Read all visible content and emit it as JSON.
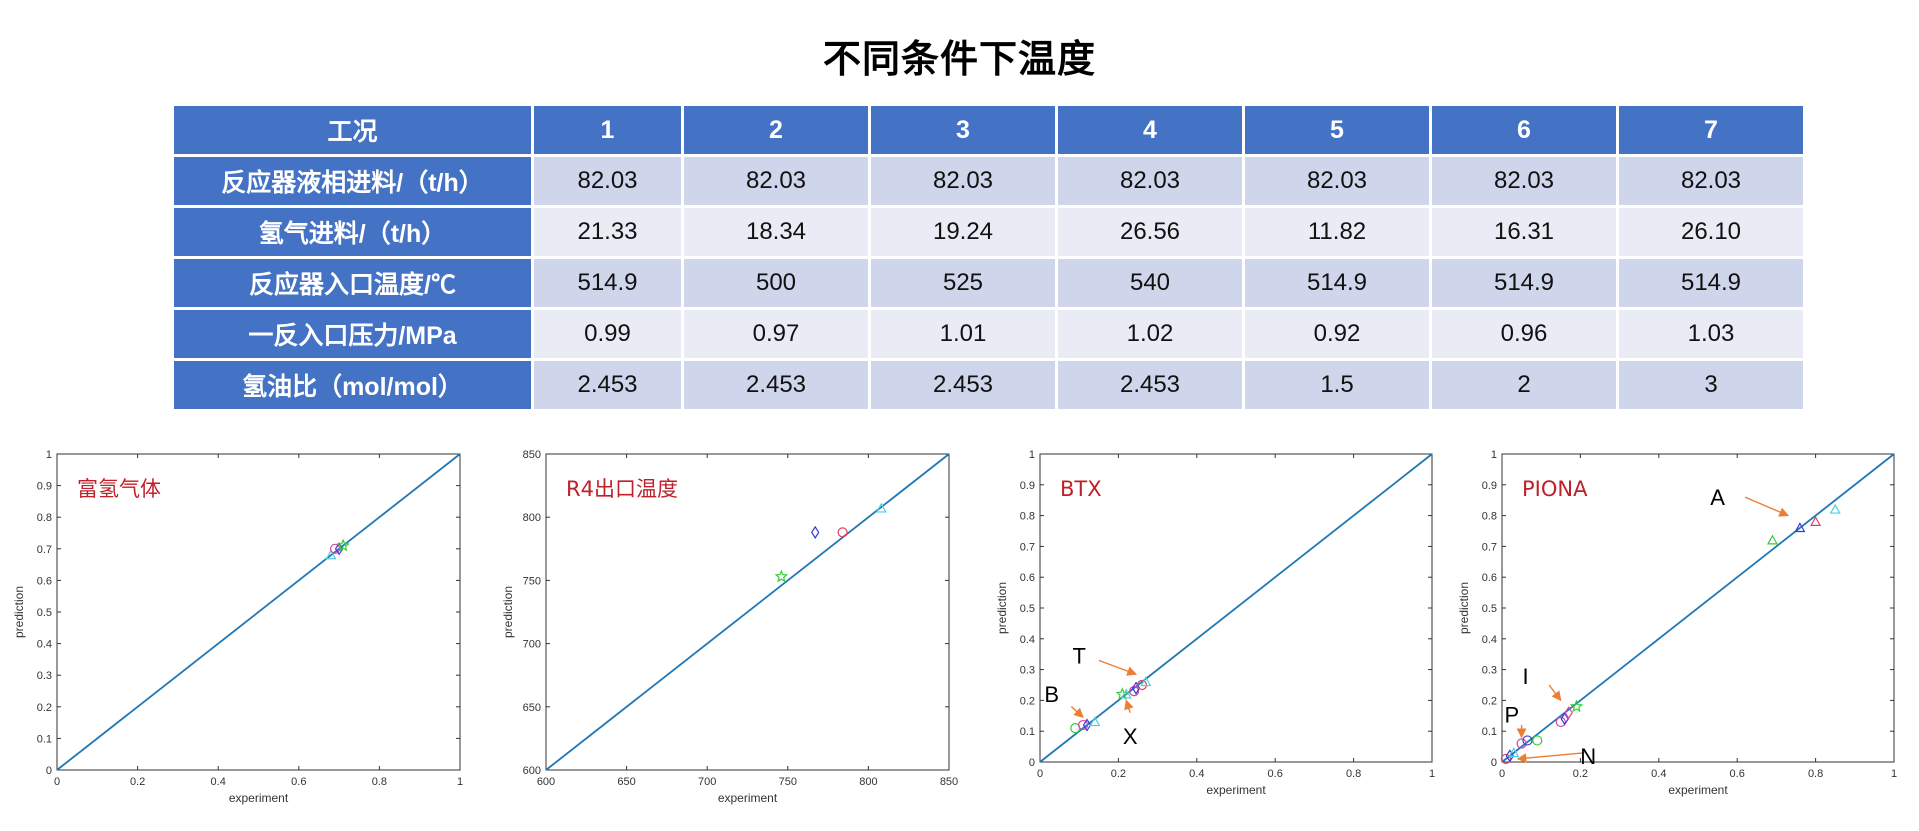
{
  "title": "不同条件下温度",
  "table": {
    "header": [
      "工况",
      "1",
      "2",
      "3",
      "4",
      "5",
      "6",
      "7"
    ],
    "rows": [
      {
        "label": "反应器液相进料/（t/h）",
        "values": [
          "82.03",
          "82.03",
          "82.03",
          "82.03",
          "82.03",
          "82.03",
          "82.03"
        ]
      },
      {
        "label": "氢气进料/（t/h）",
        "values": [
          "21.33",
          "18.34",
          "19.24",
          "26.56",
          "11.82",
          "16.31",
          "26.10"
        ]
      },
      {
        "label": "反应器入口温度/℃",
        "values": [
          "514.9",
          "500",
          "525",
          "540",
          "514.9",
          "514.9",
          "514.9"
        ]
      },
      {
        "label": "一反入口压力/MPa",
        "values": [
          "0.99",
          "0.97",
          "1.01",
          "1.02",
          "0.92",
          "0.96",
          "1.03"
        ]
      },
      {
        "label": "氢油比（mol/mol）",
        "values": [
          "2.453",
          "2.453",
          "2.453",
          "2.453",
          "1.5",
          "2",
          "3"
        ]
      }
    ]
  },
  "chart_data": [
    {
      "type": "scatter",
      "title": "富氢气体",
      "xlabel": "experiment",
      "ylabel": "prediction",
      "xlim": [
        0,
        1
      ],
      "ylim": [
        0,
        1
      ],
      "xticks": [
        "0",
        "0.2",
        "0.4",
        "0.6",
        "0.8",
        "1"
      ],
      "yticks": [
        "0",
        "0.1",
        "0.2",
        "0.3",
        "0.4",
        "0.5",
        "0.6",
        "0.7",
        "0.8",
        "0.9",
        "1"
      ],
      "diagonal": true,
      "points": [
        {
          "x": 0.68,
          "y": 0.68,
          "color": "#4dd0e1",
          "marker": "triangle"
        },
        {
          "x": 0.69,
          "y": 0.7,
          "color": "#e040a0",
          "marker": "circle"
        },
        {
          "x": 0.7,
          "y": 0.7,
          "color": "#3a3ae0",
          "marker": "diamond"
        },
        {
          "x": 0.71,
          "y": 0.71,
          "color": "#30d030",
          "marker": "star"
        }
      ],
      "annotations": []
    },
    {
      "type": "scatter",
      "title": "R4出口温度",
      "xlabel": "experiment",
      "ylabel": "prediction",
      "xlim": [
        600,
        850
      ],
      "ylim": [
        600,
        850
      ],
      "xticks": [
        "600",
        "650",
        "700",
        "750",
        "800",
        "850"
      ],
      "yticks": [
        "600",
        "650",
        "700",
        "750",
        "800",
        "850"
      ],
      "diagonal": true,
      "points": [
        {
          "x": 746,
          "y": 753,
          "color": "#30d030",
          "marker": "star"
        },
        {
          "x": 767,
          "y": 788,
          "color": "#3a3ae0",
          "marker": "diamond"
        },
        {
          "x": 784,
          "y": 788,
          "color": "#e04060",
          "marker": "circle"
        },
        {
          "x": 808,
          "y": 807,
          "color": "#4dd0e1",
          "marker": "triangle"
        }
      ],
      "annotations": []
    },
    {
      "type": "scatter",
      "title": "BTX",
      "xlabel": "experiment",
      "ylabel": "prediction",
      "xlim": [
        0,
        1
      ],
      "ylim": [
        0,
        1
      ],
      "xticks": [
        "0",
        "0.2",
        "0.4",
        "0.6",
        "0.8",
        "1"
      ],
      "yticks": [
        "0",
        "0.1",
        "0.2",
        "0.3",
        "0.4",
        "0.5",
        "0.6",
        "0.7",
        "0.8",
        "0.9",
        "1"
      ],
      "diagonal": true,
      "points": [
        {
          "x": 0.09,
          "y": 0.11,
          "color": "#30d030",
          "marker": "circle"
        },
        {
          "x": 0.11,
          "y": 0.12,
          "color": "#e040a0",
          "marker": "circle"
        },
        {
          "x": 0.12,
          "y": 0.12,
          "color": "#3a3ae0",
          "marker": "diamond"
        },
        {
          "x": 0.14,
          "y": 0.13,
          "color": "#4dd0e1",
          "marker": "triangle"
        },
        {
          "x": 0.21,
          "y": 0.22,
          "color": "#30d030",
          "marker": "star"
        },
        {
          "x": 0.22,
          "y": 0.22,
          "color": "#4dd0e1",
          "marker": "triangle"
        },
        {
          "x": 0.24,
          "y": 0.23,
          "color": "#e040a0",
          "marker": "circle"
        },
        {
          "x": 0.245,
          "y": 0.24,
          "color": "#3a3ae0",
          "marker": "diamond"
        },
        {
          "x": 0.26,
          "y": 0.25,
          "color": "#e04060",
          "marker": "circle"
        },
        {
          "x": 0.27,
          "y": 0.26,
          "color": "#4dd0e1",
          "marker": "triangle"
        }
      ],
      "annotations": [
        {
          "text": "B",
          "tx": 0.03,
          "ty": 0.22,
          "ax": 0.08,
          "ay": 0.18,
          "bx": 0.11,
          "by": 0.145
        },
        {
          "text": "T",
          "tx": 0.1,
          "ty": 0.345,
          "ax": 0.15,
          "ay": 0.33,
          "bx": 0.245,
          "by": 0.285
        },
        {
          "text": "X",
          "tx": 0.23,
          "ty": 0.085,
          "ax": 0.23,
          "ay": 0.16,
          "bx": 0.22,
          "by": 0.2
        }
      ]
    },
    {
      "type": "scatter",
      "title": "PIONA",
      "xlabel": "experiment",
      "ylabel": "prediction",
      "xlim": [
        0,
        1
      ],
      "ylim": [
        0,
        1
      ],
      "xticks": [
        "0",
        "0.2",
        "0.4",
        "0.6",
        "0.8",
        "1"
      ],
      "yticks": [
        "0",
        "0.1",
        "0.2",
        "0.3",
        "0.4",
        "0.5",
        "0.6",
        "0.7",
        "0.8",
        "0.9",
        "1"
      ],
      "diagonal": true,
      "points": [
        {
          "x": 0.01,
          "y": 0.01,
          "color": "#e04060",
          "marker": "circle"
        },
        {
          "x": 0.02,
          "y": 0.02,
          "color": "#3a3ae0",
          "marker": "diamond"
        },
        {
          "x": 0.03,
          "y": 0.03,
          "color": "#4dd0e1",
          "marker": "triangle"
        },
        {
          "x": 0.05,
          "y": 0.06,
          "color": "#e040a0",
          "marker": "circle"
        },
        {
          "x": 0.065,
          "y": 0.07,
          "color": "#3a3ae0",
          "marker": "circle"
        },
        {
          "x": 0.09,
          "y": 0.07,
          "color": "#30d030",
          "marker": "circle"
        },
        {
          "x": 0.15,
          "y": 0.13,
          "color": "#e040a0",
          "marker": "circle"
        },
        {
          "x": 0.16,
          "y": 0.14,
          "color": "#3a3ae0",
          "marker": "diamond"
        },
        {
          "x": 0.17,
          "y": 0.16,
          "color": "#e040a0",
          "marker": "diamond"
        },
        {
          "x": 0.19,
          "y": 0.18,
          "color": "#30d030",
          "marker": "star"
        },
        {
          "x": 0.69,
          "y": 0.72,
          "color": "#30d030",
          "marker": "triangle"
        },
        {
          "x": 0.76,
          "y": 0.76,
          "color": "#3a3ae0",
          "marker": "triangle"
        },
        {
          "x": 0.8,
          "y": 0.78,
          "color": "#e04060",
          "marker": "triangle"
        },
        {
          "x": 0.85,
          "y": 0.82,
          "color": "#4dd0e1",
          "marker": "triangle"
        }
      ],
      "annotations": [
        {
          "text": "A",
          "tx": 0.55,
          "ty": 0.86,
          "ax": 0.62,
          "ay": 0.86,
          "bx": 0.73,
          "by": 0.8
        },
        {
          "text": "I",
          "tx": 0.06,
          "ty": 0.28,
          "ax": 0.12,
          "ay": 0.25,
          "bx": 0.15,
          "by": 0.2
        },
        {
          "text": "P",
          "tx": 0.025,
          "ty": 0.155,
          "ax": 0.05,
          "ay": 0.12,
          "bx": 0.05,
          "by": 0.08
        },
        {
          "text": "N",
          "tx": 0.22,
          "ty": 0.02,
          "ax": 0.21,
          "ay": 0.03,
          "bx": 0.04,
          "by": 0.01
        }
      ]
    }
  ]
}
